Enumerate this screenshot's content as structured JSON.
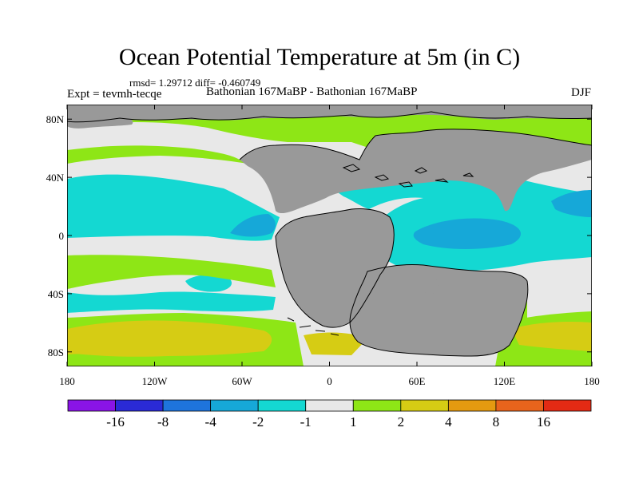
{
  "title": "Ocean Potential Temperature at 5m (in C)",
  "stats": "rmsd= 1.29712 diff= -0.460749",
  "expt_label": "Expt = tevmh-tecqe",
  "period_label": "Bathonian 167MaBP - Bathonian 167MaBP",
  "season": "DJF",
  "map_axes": {
    "lat_ticks": [
      "80N",
      "40N",
      "0",
      "40S",
      "80S"
    ],
    "lon_ticks": [
      "180",
      "120W",
      "60W",
      "0",
      "60E",
      "120E",
      "180"
    ],
    "lon_range": [
      -180,
      180
    ],
    "lat_range": [
      -90,
      90
    ]
  },
  "colorbar": {
    "levels": [
      "-16",
      "-8",
      "-4",
      "-2",
      "-1",
      "1",
      "2",
      "4",
      "8",
      "16"
    ],
    "colors": [
      "#8a14e6",
      "#2a2ad6",
      "#1e74dc",
      "#16a8d8",
      "#14d8d2",
      "#e8e8e8",
      "#8ee616",
      "#d6cc14",
      "#e49a10",
      "#e8641c",
      "#e32a14"
    ]
  },
  "palette": {
    "land": "#999999",
    "background": "#e8e8e8",
    "plus1": "#8ee616",
    "plus2": "#d6cc14",
    "minus1": "#14d8d2",
    "minus2": "#16a8d8"
  }
}
